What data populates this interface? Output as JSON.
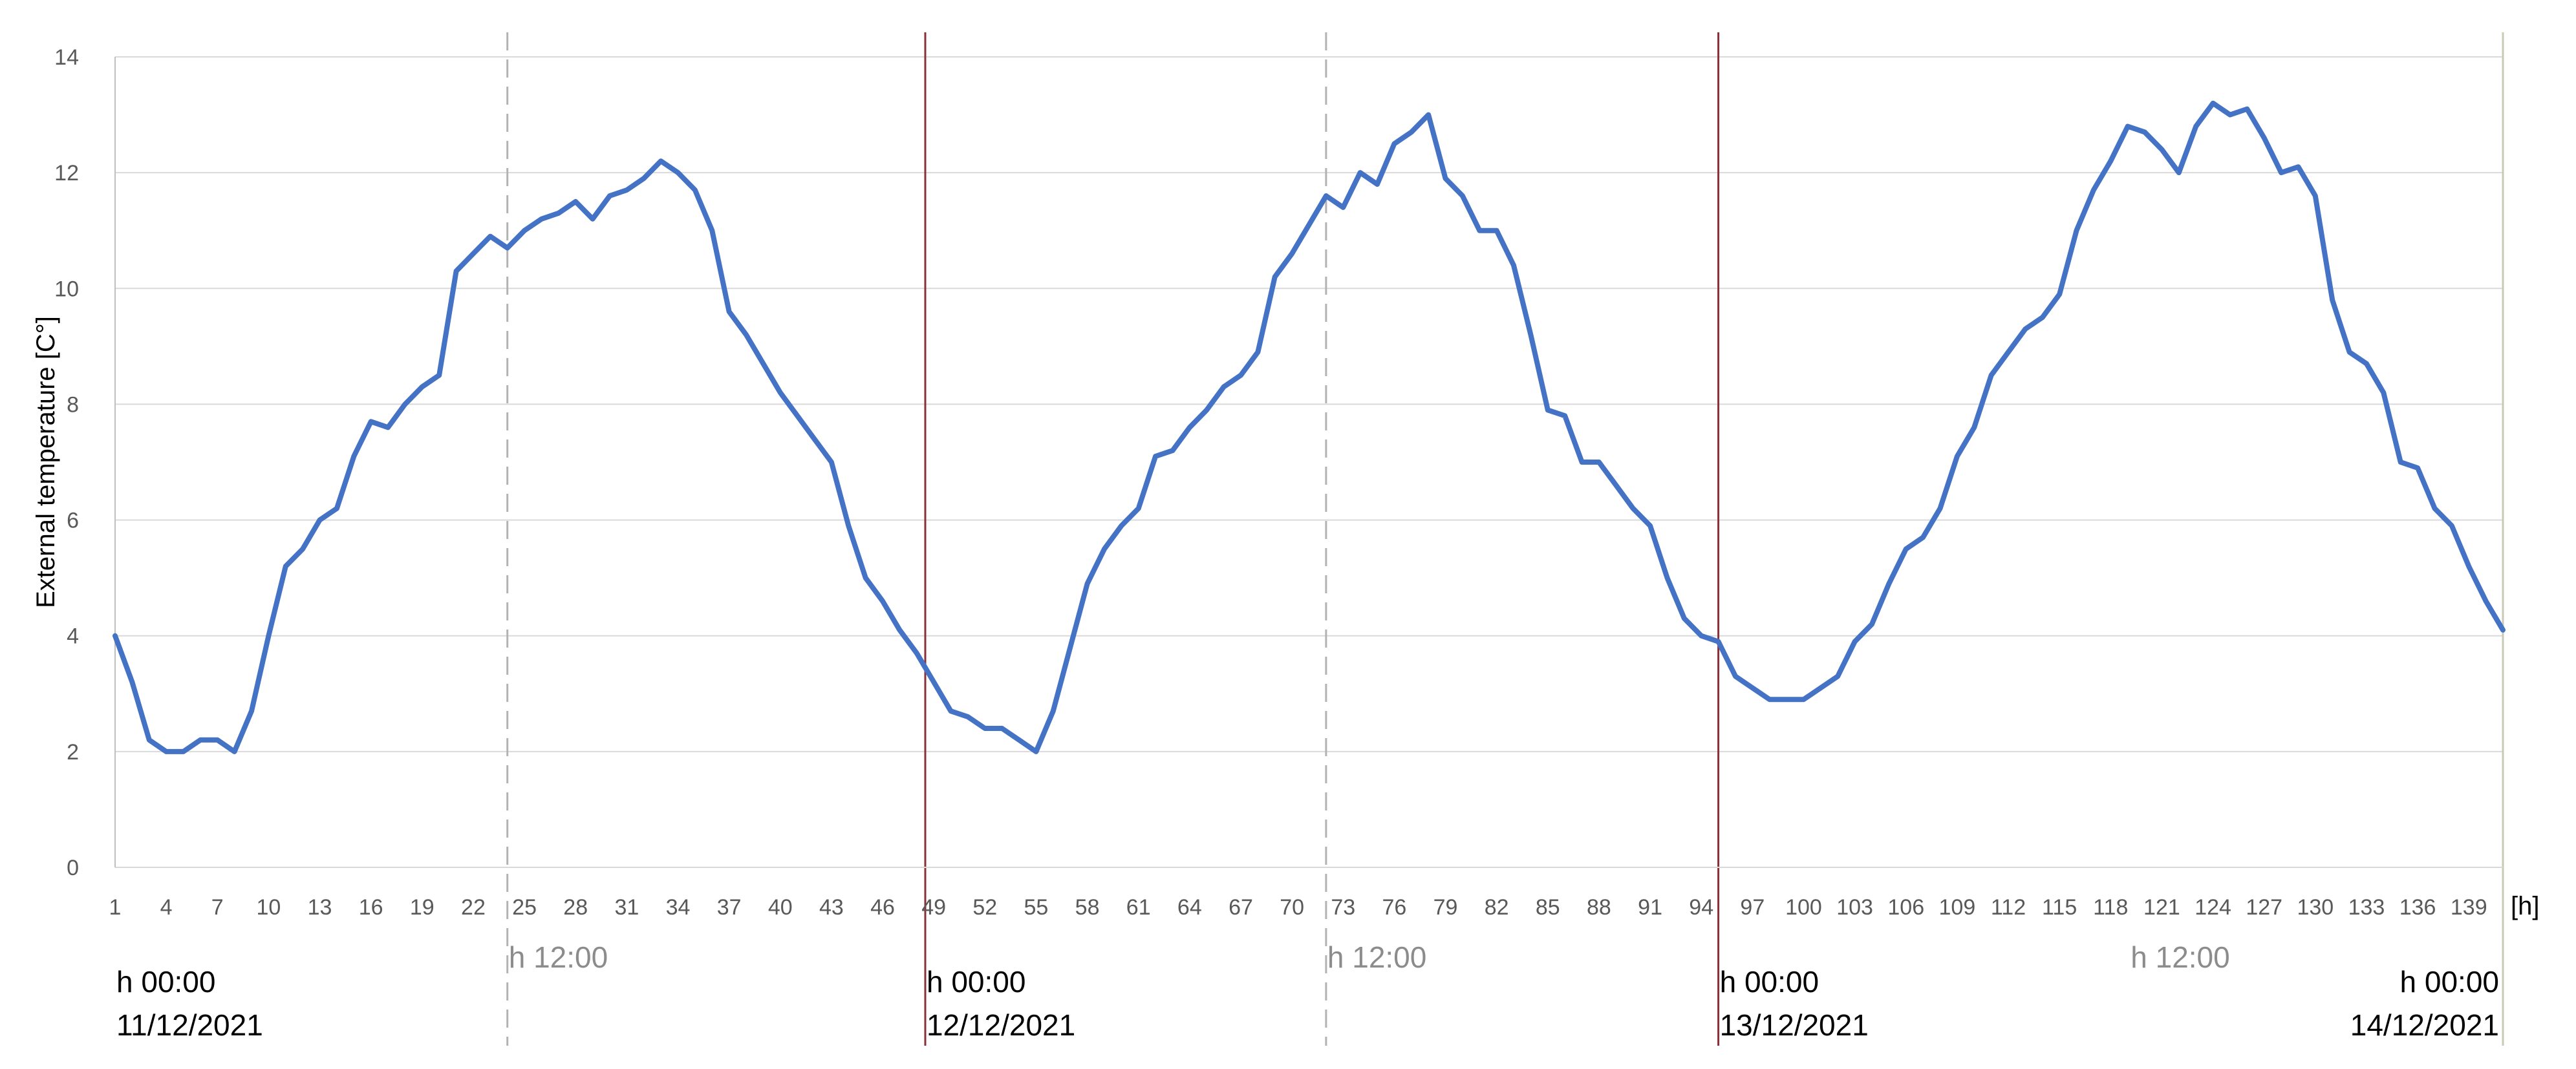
{
  "chart_data": {
    "type": "line",
    "xlabel": "",
    "x_unit": "[h]",
    "ylabel": "External temperature [C°]",
    "ylim": [
      0,
      14
    ],
    "yticks": [
      0,
      2,
      4,
      6,
      8,
      10,
      12,
      14
    ],
    "xlim": [
      1,
      141
    ],
    "xticks": [
      "1",
      "4",
      "7",
      "10",
      "13",
      "16",
      "19",
      "22",
      "25",
      "28",
      "31",
      "34",
      "37",
      "40",
      "43",
      "46",
      "49",
      "52",
      "55",
      "58",
      "61",
      "64",
      "67",
      "70",
      "73",
      "76",
      "79",
      "82",
      "85",
      "88",
      "91",
      "94",
      "97",
      "100",
      "103",
      "106",
      "109",
      "112",
      "115",
      "118",
      "121",
      "124",
      "127",
      "130",
      "133",
      "136",
      "139"
    ],
    "grid": true,
    "color": "#4472c4",
    "x": [
      1,
      2,
      3,
      4,
      5,
      6,
      7,
      8,
      9,
      10,
      11,
      12,
      13,
      14,
      15,
      16,
      17,
      18,
      19,
      20,
      21,
      22,
      23,
      24,
      25,
      26,
      27,
      28,
      29,
      30,
      31,
      32,
      33,
      34,
      35,
      36,
      37,
      38,
      39,
      40,
      41,
      42,
      43,
      44,
      45,
      46,
      47,
      48,
      49,
      50,
      51,
      52,
      53,
      54,
      55,
      56,
      57,
      58,
      59,
      60,
      61,
      62,
      63,
      64,
      65,
      66,
      67,
      68,
      69,
      70,
      71,
      72,
      73,
      74,
      75,
      76,
      77,
      78,
      79,
      80,
      81,
      82,
      83,
      84,
      85,
      86,
      87,
      88,
      89,
      90,
      91,
      92,
      93,
      94,
      95,
      96,
      97,
      98,
      99,
      100,
      101,
      102,
      103,
      104,
      105,
      106,
      107,
      108,
      109,
      110,
      111,
      112,
      113,
      114,
      115,
      116,
      117,
      118,
      119,
      120,
      121,
      122,
      123,
      124,
      125,
      126,
      127,
      128,
      129,
      130,
      131,
      132,
      133,
      134,
      135,
      136,
      137,
      138,
      139,
      140,
      141
    ],
    "y": [
      4.0,
      3.2,
      2.2,
      2.0,
      2.0,
      2.2,
      2.2,
      2.0,
      2.7,
      4.0,
      5.2,
      5.5,
      6.0,
      6.2,
      7.1,
      7.7,
      7.6,
      8.0,
      8.3,
      8.5,
      10.3,
      10.6,
      10.9,
      10.7,
      11.0,
      11.2,
      11.3,
      11.5,
      11.2,
      11.6,
      11.7,
      11.9,
      12.2,
      12.0,
      11.7,
      11.0,
      9.6,
      9.2,
      8.7,
      8.2,
      7.8,
      7.4,
      7.0,
      5.9,
      5.0,
      4.6,
      4.1,
      3.7,
      3.2,
      2.7,
      2.6,
      2.4,
      2.4,
      2.2,
      2.0,
      2.7,
      3.8,
      4.9,
      5.5,
      5.9,
      6.2,
      7.1,
      7.2,
      7.6,
      7.9,
      8.3,
      8.5,
      8.9,
      10.2,
      10.6,
      11.1,
      11.6,
      11.4,
      12.0,
      11.8,
      12.5,
      12.7,
      13.0,
      11.9,
      11.6,
      11.0,
      11.0,
      10.4,
      9.2,
      7.9,
      7.8,
      7.0,
      7.0,
      6.6,
      6.2,
      5.9,
      5.0,
      4.3,
      4.0,
      3.9,
      3.3,
      3.1,
      2.9,
      2.9,
      2.9,
      3.1,
      3.3,
      3.9,
      4.2,
      4.9,
      5.5,
      5.7,
      6.2,
      7.1,
      7.6,
      8.5,
      8.9,
      9.3,
      9.5,
      9.9,
      11.0,
      11.7,
      12.2,
      12.8,
      12.7,
      12.4,
      12.0,
      12.8,
      13.2,
      13.0,
      13.1,
      12.6,
      12.0,
      12.1,
      11.6,
      9.8,
      8.9,
      8.7,
      8.2,
      7.0,
      6.9,
      6.2,
      5.9,
      5.2,
      4.6,
      4.1
    ],
    "vlines": [
      {
        "x": 24,
        "style": "dashed"
      },
      {
        "x": 48.5,
        "style": "solid"
      },
      {
        "x": 72,
        "style": "dashed"
      },
      {
        "x": 95,
        "style": "solid"
      },
      {
        "x": 141,
        "style": "solid"
      }
    ],
    "annotations": [
      {
        "time": "h 00:00",
        "date": "11/12/2021"
      },
      {
        "time": "h 12:00"
      },
      {
        "time": "h 00:00",
        "date": "12/12/2021"
      },
      {
        "time": "h 12:00"
      },
      {
        "time": "h 00:00",
        "date": "13/12/2021"
      },
      {
        "time": "h 12:00"
      },
      {
        "time": "h 00:00",
        "date": "14/12/2021"
      }
    ]
  }
}
